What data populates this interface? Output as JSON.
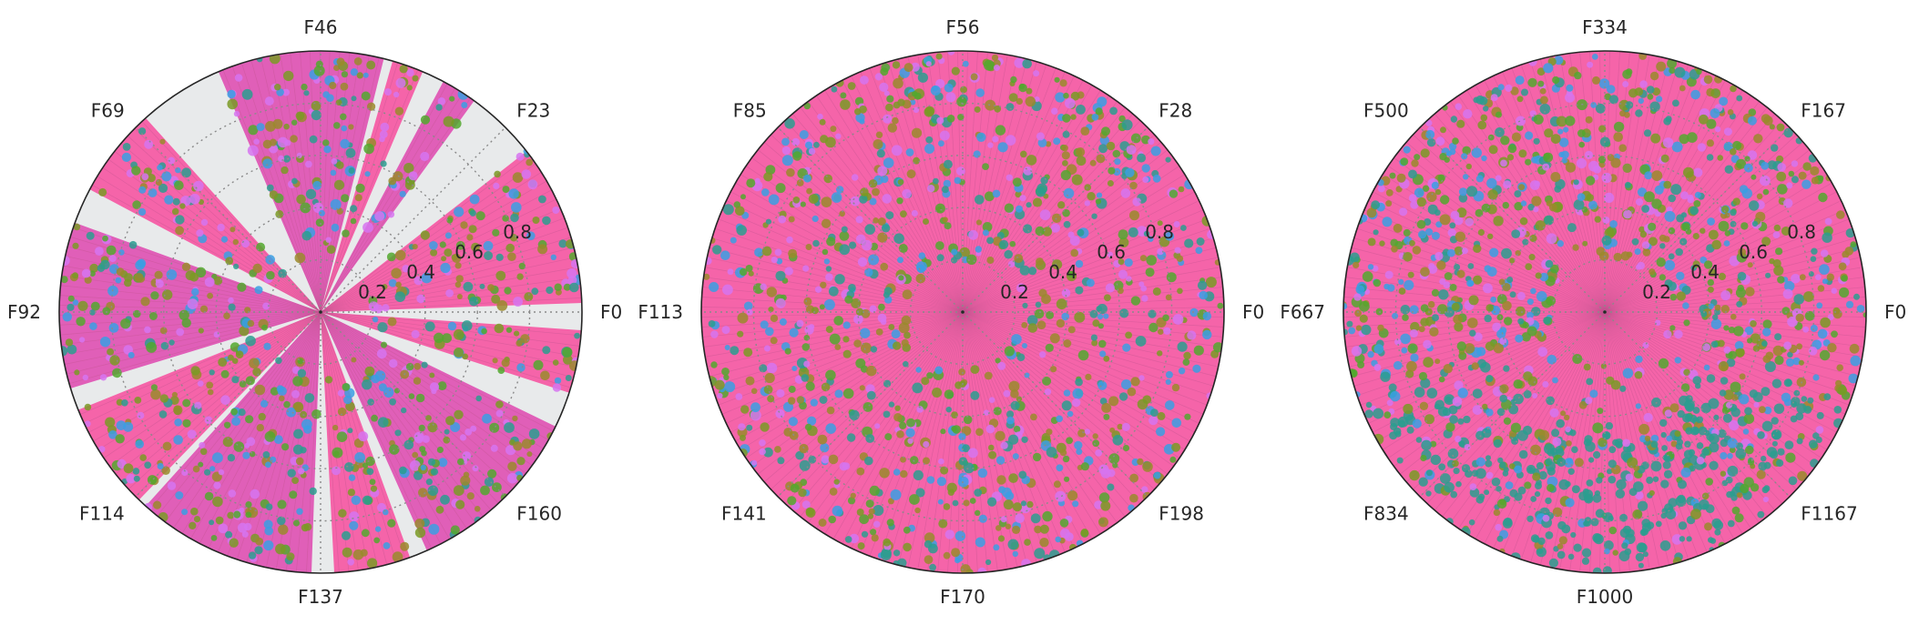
{
  "colors": {
    "background_fill": "#e8eaeb",
    "series_palette": [
      "#f564a9",
      "#e05fb8",
      "#d674f0",
      "#3a9fe3",
      "#2a9d8f",
      "#52a82e",
      "#7a9a24",
      "#9a8a2c"
    ],
    "grid": "#8a8a8a",
    "frame": "#262626"
  },
  "chart_data": [
    {
      "type": "polar-bar",
      "title": "",
      "radial_ticks": [
        "0.2",
        "0.4",
        "0.6",
        "0.8"
      ],
      "rlim": [
        0,
        1
      ],
      "angle_tick_labels": [
        "F0",
        "F23",
        "F46",
        "F69",
        "F92",
        "F114",
        "F137",
        "F160"
      ],
      "n_features": 184,
      "sectors": [
        {
          "start_deg": 2,
          "end_deg": 38
        },
        {
          "start_deg": 54,
          "end_deg": 62
        },
        {
          "start_deg": 67,
          "end_deg": 74
        },
        {
          "start_deg": 76,
          "end_deg": 113
        },
        {
          "start_deg": 132,
          "end_deg": 152
        },
        {
          "start_deg": 160,
          "end_deg": 197
        },
        {
          "start_deg": 202,
          "end_deg": 226
        },
        {
          "start_deg": 228,
          "end_deg": 268
        },
        {
          "start_deg": 273,
          "end_deg": 290
        },
        {
          "start_deg": 294,
          "end_deg": 334
        },
        {
          "start_deg": 342,
          "end_deg": 356
        }
      ]
    },
    {
      "type": "polar-bar",
      "title": "",
      "radial_ticks": [
        "0.2",
        "0.4",
        "0.6",
        "0.8"
      ],
      "rlim": [
        0,
        1
      ],
      "angle_tick_labels": [
        "F0",
        "F28",
        "F56",
        "F85",
        "F113",
        "F141",
        "F170",
        "F198"
      ],
      "n_features": 226,
      "sectors": [
        {
          "start_deg": 0,
          "end_deg": 360
        }
      ]
    },
    {
      "type": "polar-bar",
      "title": "",
      "radial_ticks": [
        "0.2",
        "0.4",
        "0.6",
        "0.8"
      ],
      "rlim": [
        0,
        1
      ],
      "angle_tick_labels": [
        "F0",
        "F167",
        "F334",
        "F500",
        "F667",
        "F834",
        "F1000",
        "F1167"
      ],
      "n_features": 1334,
      "sectors": [
        {
          "start_deg": 0,
          "end_deg": 360
        }
      ]
    }
  ]
}
